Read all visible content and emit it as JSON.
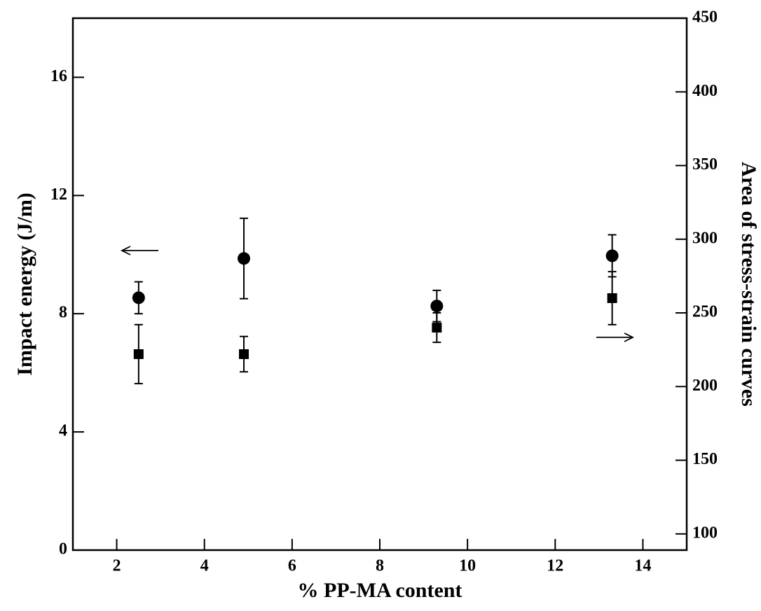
{
  "chart_data": {
    "type": "scatter",
    "x_label": "% PP-MA content",
    "y_label": "Impact energy (J/m)",
    "y2_label": "Area of stress-strain curves",
    "x": [
      2.5,
      4.9,
      9.3,
      13.3
    ],
    "xlim": [
      1,
      15
    ],
    "xticks": [
      2,
      4,
      6,
      8,
      10,
      12,
      14
    ],
    "ylim": [
      0,
      18
    ],
    "yticks": [
      0,
      4,
      8,
      12,
      16
    ],
    "y2lim": [
      89,
      450
    ],
    "y2ticks": [
      100,
      150,
      200,
      250,
      300,
      350,
      400,
      450
    ],
    "series": [
      {
        "marker": "circle",
        "color": "#000000",
        "axis": "y",
        "values": [
          8.54,
          9.87,
          8.26,
          9.96
        ],
        "errors": [
          0.54,
          1.36,
          0.53,
          0.71
        ]
      },
      {
        "marker": "square",
        "color": "#000000",
        "axis": "y2",
        "values": [
          222,
          222,
          240,
          260
        ],
        "errors": [
          20,
          12,
          10,
          18
        ]
      }
    ]
  }
}
